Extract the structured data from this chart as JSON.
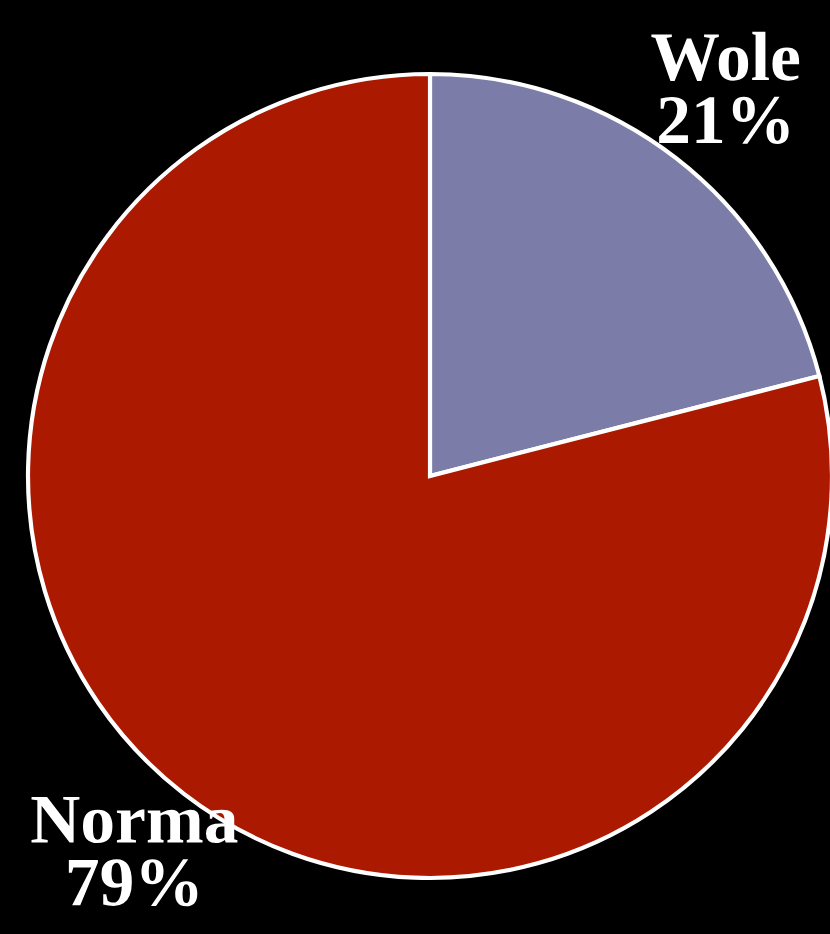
{
  "chart_data": {
    "type": "pie",
    "categories": [
      "Wole",
      "Norma"
    ],
    "values": [
      21,
      79
    ],
    "value_labels": [
      "21%",
      "79%"
    ],
    "colors": [
      "#7b7ca8",
      "#ab1900"
    ]
  }
}
